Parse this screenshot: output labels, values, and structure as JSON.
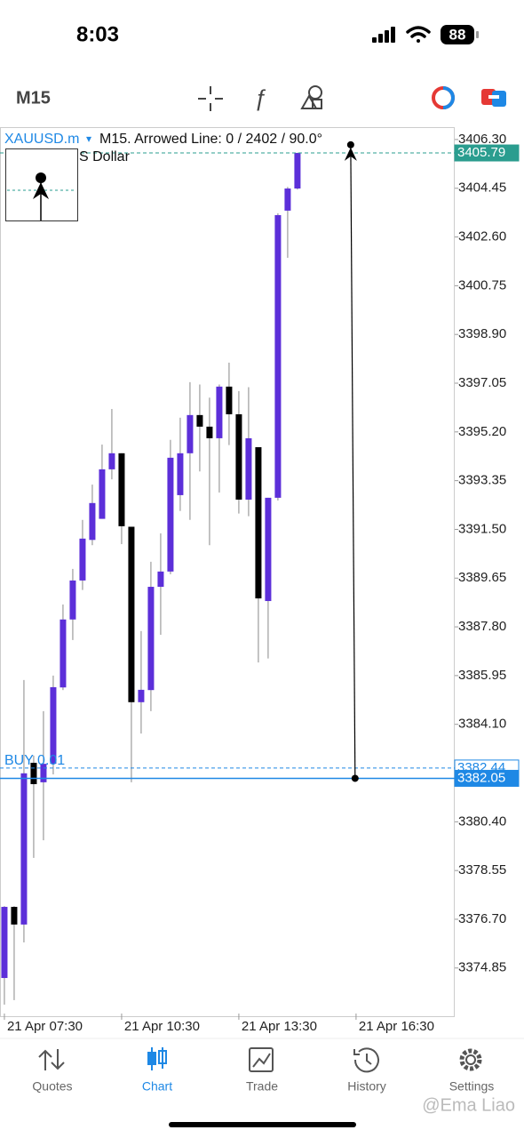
{
  "status_bar": {
    "time": "8:03",
    "battery": "88"
  },
  "toolbar": {
    "timeframe": "M15"
  },
  "chart_header": {
    "symbol": "XAUUSD.m",
    "dropdown": "▾",
    "info": "M15. Arrowed Line: 0 / 2402 / 90.0°",
    "description": "S Dollar"
  },
  "chart_data": {
    "type": "candlestick",
    "up_color": "#5c2fd9",
    "down_color": "#000000",
    "x": [
      0,
      1,
      2,
      3,
      4,
      5,
      6,
      7,
      8,
      9,
      10,
      11,
      12,
      13,
      14,
      15,
      16,
      17,
      18,
      19,
      20,
      21,
      22,
      23,
      24,
      25,
      26,
      27,
      28,
      29,
      30
    ],
    "open": [
      3374.47,
      3377.17,
      3376.5,
      3382.64,
      3381.9,
      3382.6,
      3385.5,
      3388.08,
      3389.56,
      3391.1,
      3391.9,
      3393.78,
      3394.39,
      3391.6,
      3384.94,
      3385.4,
      3389.32,
      3389.9,
      3392.8,
      3394.39,
      3395.84,
      3395.4,
      3394.96,
      3396.92,
      3395.87,
      3392.63,
      3394.62,
      3388.78,
      3392.7,
      3403.6,
      3404.44
    ],
    "high": [
      3377.2,
      3377.2,
      3385.78,
      3382.91,
      3384.6,
      3385.95,
      3388.65,
      3390.0,
      3391.86,
      3393.2,
      3394.72,
      3396.07,
      3394.39,
      3391.6,
      3387.64,
      3390.27,
      3391.35,
      3394.9,
      3395.74,
      3397.09,
      3397.0,
      3396.5,
      3397.0,
      3397.83,
      3396.75,
      3396.9,
      3394.62,
      3392.7,
      3403.5,
      3404.5,
      3405.8
    ],
    "low": [
      3373.46,
      3373.63,
      3375.82,
      3379.03,
      3379.7,
      3382.2,
      3385.4,
      3387.3,
      3389.2,
      3390.9,
      3391.9,
      3393.4,
      3390.94,
      3381.9,
      3383.75,
      3384.6,
      3387.5,
      3389.8,
      3392.2,
      3391.86,
      3393.7,
      3390.9,
      3392.9,
      3394.7,
      3392.1,
      3392.0,
      3386.45,
      3386.6,
      3392.6,
      3401.81,
      3404.4
    ],
    "close": [
      3377.17,
      3376.5,
      3382.24,
      3381.83,
      3382.6,
      3385.51,
      3388.08,
      3389.56,
      3391.15,
      3392.5,
      3393.78,
      3394.39,
      3391.62,
      3384.94,
      3385.41,
      3389.32,
      3389.9,
      3394.22,
      3394.39,
      3395.84,
      3395.4,
      3394.96,
      3396.92,
      3395.87,
      3392.63,
      3394.96,
      3388.88,
      3392.7,
      3403.43,
      3404.44,
      3405.79
    ],
    "xlim": [
      -0.45,
      46.1
    ],
    "xticks": [
      {
        "value": 0,
        "label": "21 Apr 07:30"
      },
      {
        "value": 12,
        "label": "21 Apr 10:30"
      },
      {
        "value": 24,
        "label": "21 Apr 13:30"
      },
      {
        "value": 36,
        "label": "21 Apr 16:30"
      }
    ],
    "ylim": [
      3373.02,
      3406.77
    ],
    "yticks": [
      {
        "value": 3406.3,
        "label": "3406.30"
      },
      3404.45,
      {
        "value": 3402.6,
        "label": "3402.60"
      },
      3400.75,
      {
        "value": 3398.9,
        "label": "3398.90"
      },
      3397.05,
      {
        "value": 3395.2,
        "label": "3395.20"
      },
      3393.35,
      {
        "value": 3391.5,
        "label": "3391.50"
      },
      3389.65,
      {
        "value": 3387.8,
        "label": "3387.80"
      },
      3385.95,
      {
        "value": 3384.1,
        "label": "3384.10"
      },
      {
        "value": 3380.4,
        "label": "3380.40"
      },
      3378.55,
      {
        "value": 3376.7,
        "label": "3376.70"
      },
      3374.85
    ],
    "price_lines": [
      {
        "value": 3405.79,
        "color": "#2a9d8f",
        "style": "dashed",
        "label_style": "filled"
      },
      {
        "name": "BUY 0.01",
        "value": 3382.44,
        "color": "#1e88e5",
        "style": "dashed",
        "label_style": "outline"
      },
      {
        "value": 3382.05,
        "color": "#1e88e5",
        "style": "solid",
        "label_style": "filled"
      }
    ],
    "arrow": {
      "x": [
        35.45,
        35.9
      ],
      "y": [
        3406.1,
        3382.05
      ]
    }
  },
  "tab_bar": {
    "tabs": [
      "Quotes",
      "Chart",
      "Trade",
      "History",
      "Settings"
    ],
    "active": 1
  },
  "watermark": "@Ema Liao"
}
